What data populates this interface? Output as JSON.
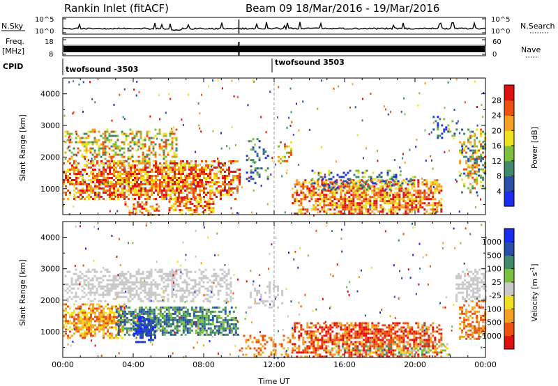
{
  "header": {
    "station": "Rankin Inlet (fitACF)",
    "beam": "Beam 09",
    "date_range": "18/Mar/2016 - 19/Mar/2016"
  },
  "summary": {
    "nsky_label": "N.Sky",
    "nsearch_label": "N.Search",
    "nsky_ticks": [
      "10^5",
      "10^0"
    ],
    "nsearch_ticks": [
      "10^5",
      "10^0"
    ],
    "freq_label_line1": "Freq.",
    "freq_label_line2": "[MHz]",
    "freq_ticks": [
      "18",
      "8"
    ],
    "nave_label": "Nave",
    "nave_ticks": [
      "60",
      "0"
    ],
    "cpid_label": "CPID",
    "cpid_segments": [
      {
        "name": "twofsound -3503",
        "start_hour": 0,
        "end_hour": 12
      },
      {
        "name": "twofsound 3503",
        "start_hour": 12,
        "end_hour": 24
      }
    ]
  },
  "chart_data": [
    {
      "type": "heatmap",
      "title": "",
      "ylabel": "Slant Range [km]",
      "xlabel": "",
      "xlim": [
        0,
        24
      ],
      "ylim": [
        180,
        4500
      ],
      "yticks": [
        1000,
        2000,
        3000,
        4000
      ],
      "colorbar_label": "Power [dB]",
      "colorbar_ticks": [
        "4",
        "8",
        "12",
        "16",
        "20",
        "24",
        "28"
      ],
      "colors": [
        "#1a2cf0",
        "#2a4fa8",
        "#3f8a6a",
        "#7cc040",
        "#f0e020",
        "#f4a020",
        "#ee5010",
        "#e01010"
      ],
      "blobs": [
        {
          "h0": 0.0,
          "h1": 10.0,
          "r0": 700,
          "r1": 1900,
          "c0": 4,
          "c1": 7,
          "d": 0.85
        },
        {
          "h0": 0.1,
          "h1": 6.5,
          "r0": 1900,
          "r1": 2900,
          "c0": 2,
          "c1": 6,
          "d": 0.5
        },
        {
          "h0": 6.0,
          "h1": 8.5,
          "r0": 200,
          "r1": 750,
          "c0": 4,
          "c1": 7,
          "d": 0.7
        },
        {
          "h0": 3.5,
          "h1": 5.5,
          "r0": 200,
          "r1": 600,
          "c0": 4,
          "c1": 7,
          "d": 0.5
        },
        {
          "h0": 10.4,
          "h1": 11.6,
          "r0": 1200,
          "r1": 2600,
          "c0": 0,
          "c1": 3,
          "d": 0.25
        },
        {
          "h0": 12.2,
          "h1": 13.0,
          "r0": 1800,
          "r1": 2500,
          "c0": 3,
          "c1": 6,
          "d": 0.4
        },
        {
          "h0": 13.0,
          "h1": 21.5,
          "r0": 200,
          "r1": 1300,
          "c0": 4,
          "c1": 7,
          "d": 0.8
        },
        {
          "h0": 14.0,
          "h1": 20.0,
          "r0": 1000,
          "r1": 1600,
          "c0": 0,
          "c1": 4,
          "d": 0.35
        },
        {
          "h0": 22.5,
          "h1": 24.0,
          "r0": 900,
          "r1": 2900,
          "c0": 1,
          "c1": 6,
          "d": 0.6
        },
        {
          "h0": 21.0,
          "h1": 22.5,
          "r0": 2600,
          "r1": 3300,
          "c0": 0,
          "c1": 3,
          "d": 0.25
        }
      ]
    },
    {
      "type": "heatmap",
      "title": "",
      "ylabel": "Slant Range [km]",
      "xlabel": "Time UT",
      "xlim": [
        0,
        24
      ],
      "ylim": [
        180,
        4500
      ],
      "yticks": [
        1000,
        2000,
        3000,
        4000
      ],
      "xticks": [
        "00:00",
        "04:00",
        "08:00",
        "12:00",
        "16:00",
        "20:00",
        "00:00"
      ],
      "colorbar_label": "Velocity [m s^-1]",
      "colorbar_ticks": [
        "-1000",
        "-500",
        "-100",
        "-25",
        "25",
        "100",
        "500",
        "1000"
      ],
      "colors": [
        "#e01010",
        "#ee5010",
        "#f4a020",
        "#f0e020",
        "#c8c8c8",
        "#7cc040",
        "#3f8a6a",
        "#2a4fa8",
        "#1a2cf0"
      ],
      "blobs": [
        {
          "h0": 0.0,
          "h1": 3.5,
          "r0": 800,
          "r1": 1900,
          "c0": 1,
          "c1": 3,
          "d": 0.8
        },
        {
          "h0": 3.0,
          "h1": 10.0,
          "r0": 900,
          "r1": 1800,
          "c0": 5,
          "c1": 7,
          "d": 0.85
        },
        {
          "h0": 4.0,
          "h1": 5.3,
          "r0": 700,
          "r1": 1500,
          "c0": 7,
          "c1": 8,
          "d": 0.8
        },
        {
          "h0": 0.1,
          "h1": 9.5,
          "r0": 2000,
          "r1": 3000,
          "c0": 4,
          "c1": 4,
          "d": 0.6
        },
        {
          "h0": 10.5,
          "h1": 12.5,
          "r0": 1800,
          "r1": 2600,
          "c0": 4,
          "c1": 4,
          "d": 0.35
        },
        {
          "h0": 13.0,
          "h1": 21.5,
          "r0": 200,
          "r1": 1300,
          "c0": 0,
          "c1": 2,
          "d": 0.8
        },
        {
          "h0": 15.0,
          "h1": 22.0,
          "r0": 300,
          "r1": 700,
          "c0": 3,
          "c1": 6,
          "d": 0.35
        },
        {
          "h0": 22.3,
          "h1": 24.0,
          "r0": 2000,
          "r1": 3000,
          "c0": 4,
          "c1": 4,
          "d": 0.6
        },
        {
          "h0": 22.5,
          "h1": 24.0,
          "r0": 800,
          "r1": 2000,
          "c0": 1,
          "c1": 2,
          "d": 0.6
        },
        {
          "h0": 10.0,
          "h1": 13.0,
          "r0": 200,
          "r1": 900,
          "c0": 1,
          "c1": 2,
          "d": 0.35
        }
      ]
    }
  ]
}
